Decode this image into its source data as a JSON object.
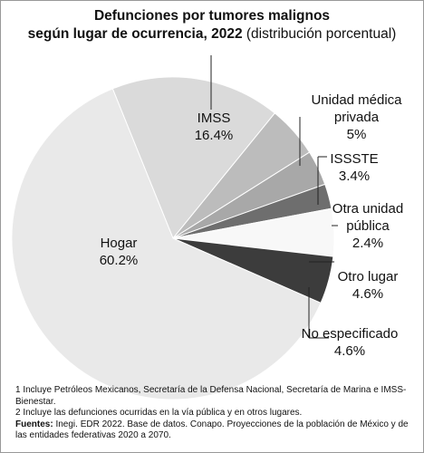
{
  "chart_data": {
    "type": "pie",
    "title": "Defunciones por tumores malignos",
    "title_line2": "según lugar de ocurrencia, 2022",
    "subtitle": "(distribución porcentual)",
    "categories": [
      "IMSS",
      "Unidad médica privada",
      "ISSSTE",
      "Otra unidad pública",
      "Otro lugar",
      "No especificado",
      "Hogar"
    ],
    "values": [
      16.4,
      5,
      3.4,
      2.4,
      4.6,
      4.6,
      60.2
    ],
    "value_labels": [
      "16.4%",
      "5%",
      "3.4%",
      "2.4%",
      "4.6%",
      "4.6%",
      "60.2%"
    ],
    "colors": [
      "#dadada",
      "#bcbcbc",
      "#a8a8a8",
      "#6e6e6e",
      "#f8f8f8",
      "#3c3c3c",
      "#e9e9e9"
    ],
    "notes": [
      "1  Incluye Petróleos Mexicanos, Secretaría de la Defensa Nacional, Secretaría de Marina e IMSS-Bienestar.",
      "2  Incluye las defunciones ocurridas en la vía pública y en otros lugares."
    ],
    "source_label": "Fuentes:",
    "source": "Inegi. EDR 2022. Base de datos. Conapo. Proyecciones de la población de México y de las entidades federativas 2020 a 2070."
  }
}
